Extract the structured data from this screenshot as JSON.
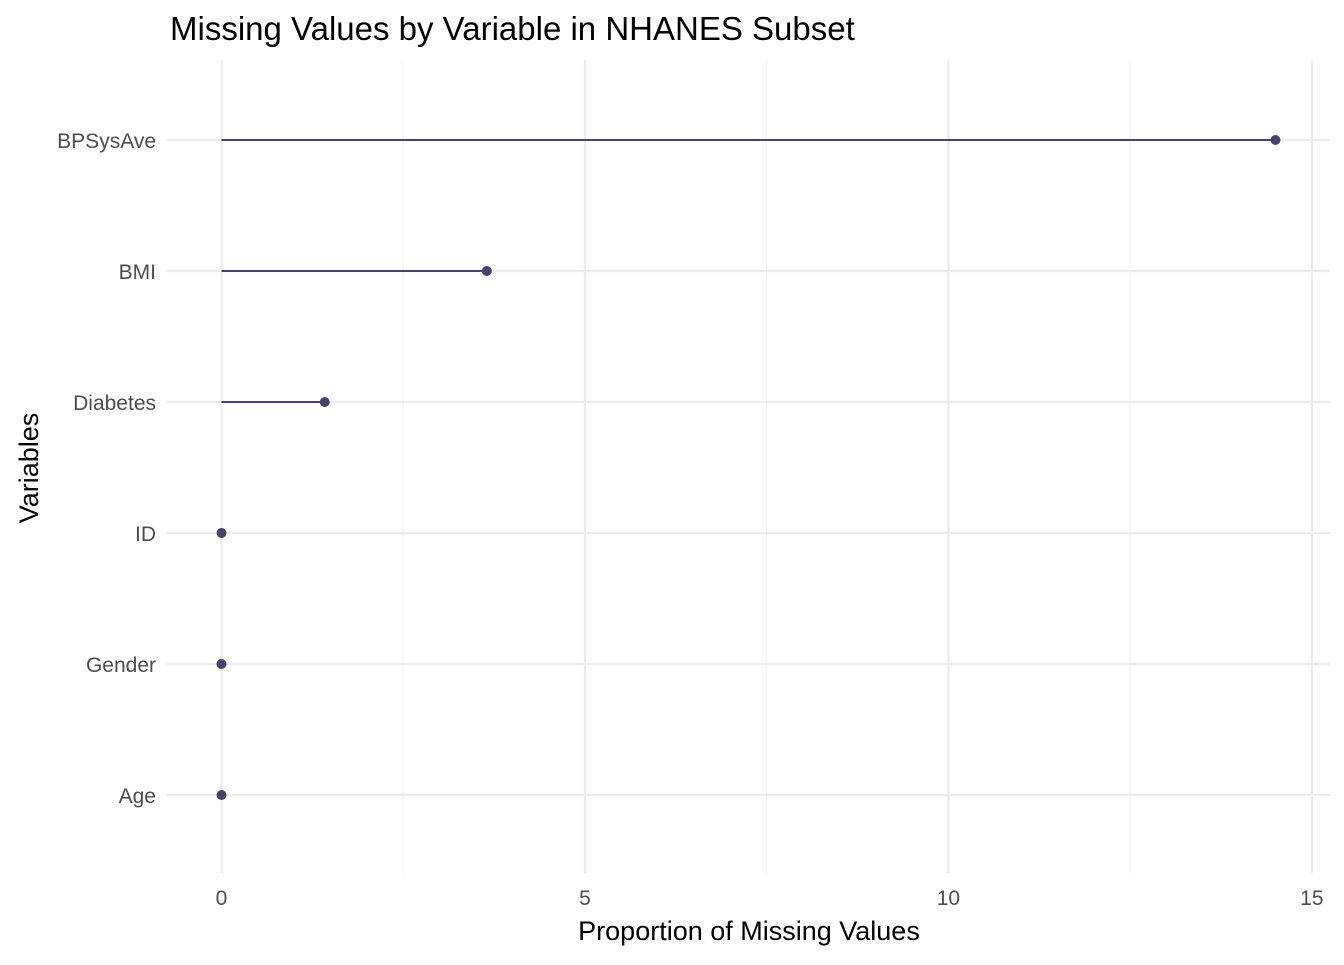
{
  "chart_data": {
    "type": "lollipop",
    "title": "Missing Values by Variable in NHANES Subset",
    "xlabel": "Proportion of Missing Values",
    "ylabel": "Variables",
    "categories": [
      "BPSysAve",
      "BMI",
      "Diabetes",
      "ID",
      "Gender",
      "Age"
    ],
    "values": [
      14.5,
      3.65,
      1.42,
      0,
      0,
      0
    ],
    "xlim": [
      -0.75,
      15.25
    ],
    "xticks": [
      0,
      5,
      10,
      15
    ],
    "grid": true,
    "colors": {
      "mark": "#44446a",
      "grid_major": "#ebebeb",
      "grid_minor": "#f4f4f4",
      "text": "#4d4d4d",
      "title": "#000000"
    }
  }
}
